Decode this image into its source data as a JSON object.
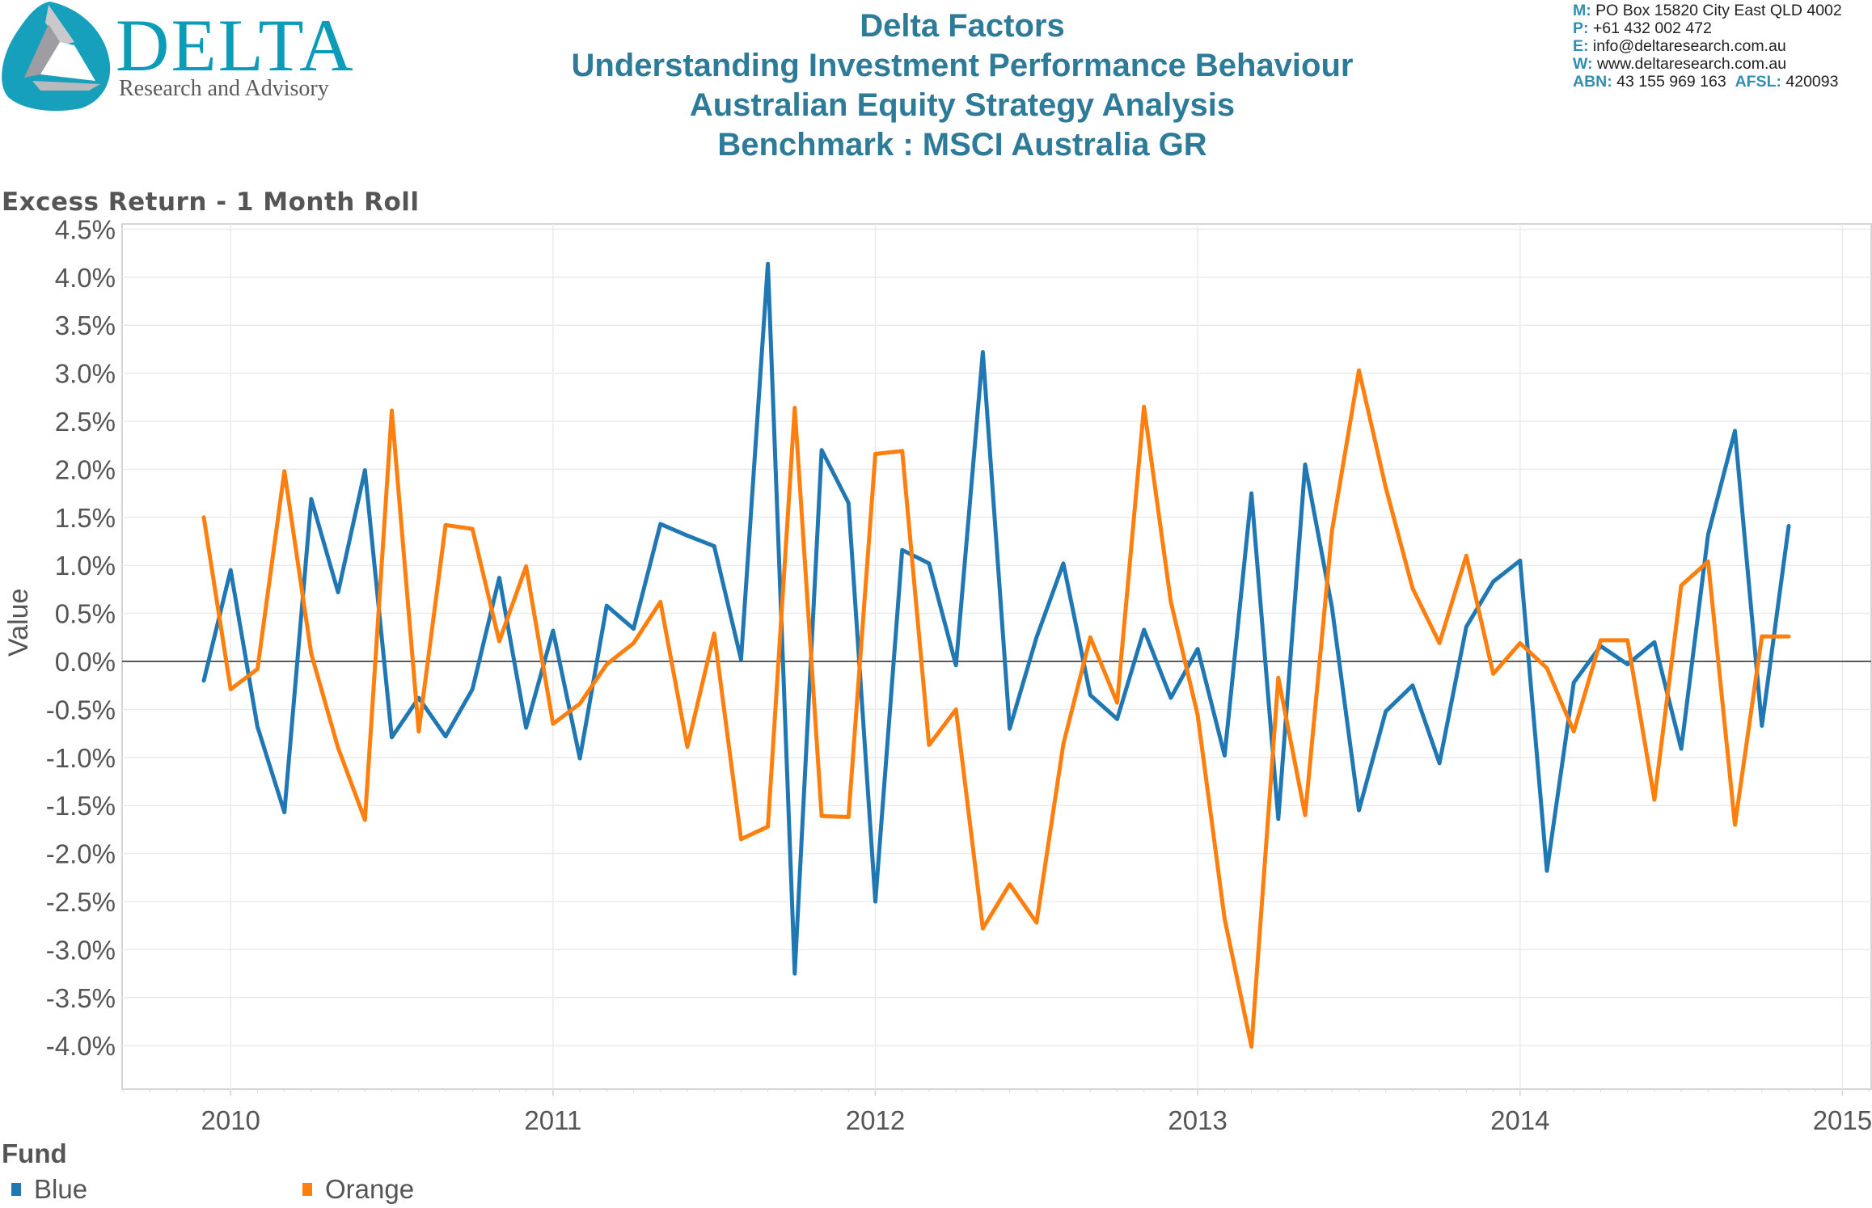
{
  "header": {
    "logo": {
      "word": "DELTA",
      "tagline": "Research and Advisory",
      "icon": "delta-triangle-logo-icon"
    },
    "titles": [
      "Delta Factors",
      "Understanding Investment Performance Behaviour",
      "Australian Equity Strategy Analysis",
      "Benchmark : MSCI Australia GR"
    ],
    "contact": [
      {
        "key": "M:",
        "value": " PO Box 15820 City East QLD 4002"
      },
      {
        "key": "P:",
        "value": " +61 432 002 472"
      },
      {
        "key": "E:",
        "value": " info@deltaresearch.com.au"
      },
      {
        "key": "W:",
        "value": " www.deltaresearch.com.au"
      },
      {
        "key": "ABN:",
        "value": " 43 155 969 163  ",
        "key2": "AFSL:",
        "value2": " 420093"
      }
    ]
  },
  "colors": {
    "brand": "#0d9cb8",
    "title": "#2d7a99",
    "blue": "#1f77b4",
    "orange": "#ff7f0e",
    "grid": "#ebebeb",
    "zero": "#5a5a5a"
  },
  "chart_data": {
    "type": "line",
    "title": "Excess Return - 1 Month Roll",
    "xlabel": "",
    "ylabel": "Value",
    "ylim": [
      -4.45,
      4.6
    ],
    "yticks": [
      4.5,
      4.0,
      3.5,
      3.0,
      2.5,
      2.0,
      1.5,
      1.0,
      0.5,
      0.0,
      -0.5,
      -1.0,
      -1.5,
      -2.0,
      -2.5,
      -3.0,
      -3.5,
      -4.0
    ],
    "ytick_format": "percent_1dp",
    "xticks": [
      "2010",
      "2011",
      "2012",
      "2013",
      "2014",
      "2015"
    ],
    "xlim": [
      "2009-09",
      "2015-02"
    ],
    "x_start": "2009-12",
    "x_step": "1 month",
    "grid": true,
    "zero_line": true,
    "legend": {
      "title": "Fund",
      "position": "bottom-left"
    },
    "series": [
      {
        "name": "Blue",
        "color": "#1f77b4",
        "values": [
          -0.2,
          0.95,
          -0.68,
          -1.57,
          1.69,
          0.72,
          1.99,
          -0.79,
          -0.38,
          -0.78,
          -0.29,
          0.87,
          -0.69,
          0.32,
          -1.01,
          0.58,
          0.34,
          1.43,
          1.31,
          1.2,
          0.02,
          4.14,
          -3.25,
          2.2,
          1.65,
          -2.5,
          1.16,
          1.02,
          -0.04,
          3.22,
          -0.7,
          0.25,
          1.02,
          -0.35,
          -0.6,
          0.33,
          -0.38,
          0.13,
          -0.98,
          1.75,
          -1.64,
          2.05,
          0.56,
          -1.55,
          -0.52,
          -0.25,
          -1.06,
          0.36,
          0.83,
          1.05,
          -2.18,
          -0.22,
          0.16,
          -0.03,
          0.2,
          -0.91,
          1.32,
          2.4,
          -0.67,
          1.41
        ]
      },
      {
        "name": "Orange",
        "color": "#ff7f0e",
        "values": [
          1.5,
          -0.29,
          -0.08,
          1.98,
          0.08,
          -0.9,
          -1.65,
          2.61,
          -0.73,
          1.42,
          1.38,
          0.21,
          0.99,
          -0.65,
          -0.44,
          -0.03,
          0.19,
          0.62,
          -0.89,
          0.29,
          -1.85,
          -1.72,
          2.64,
          -1.61,
          -1.62,
          2.16,
          2.19,
          -0.87,
          -0.5,
          -2.78,
          -2.32,
          -2.72,
          -0.86,
          0.25,
          -0.43,
          2.65,
          0.62,
          -0.56,
          -2.68,
          -4.01,
          -0.17,
          -1.6,
          1.36,
          3.03,
          1.81,
          0.76,
          0.19,
          1.1,
          -0.13,
          0.19,
          -0.07,
          -0.73,
          0.22,
          0.22,
          -1.44,
          0.79,
          1.04,
          -1.7,
          0.26,
          0.26
        ]
      }
    ]
  }
}
